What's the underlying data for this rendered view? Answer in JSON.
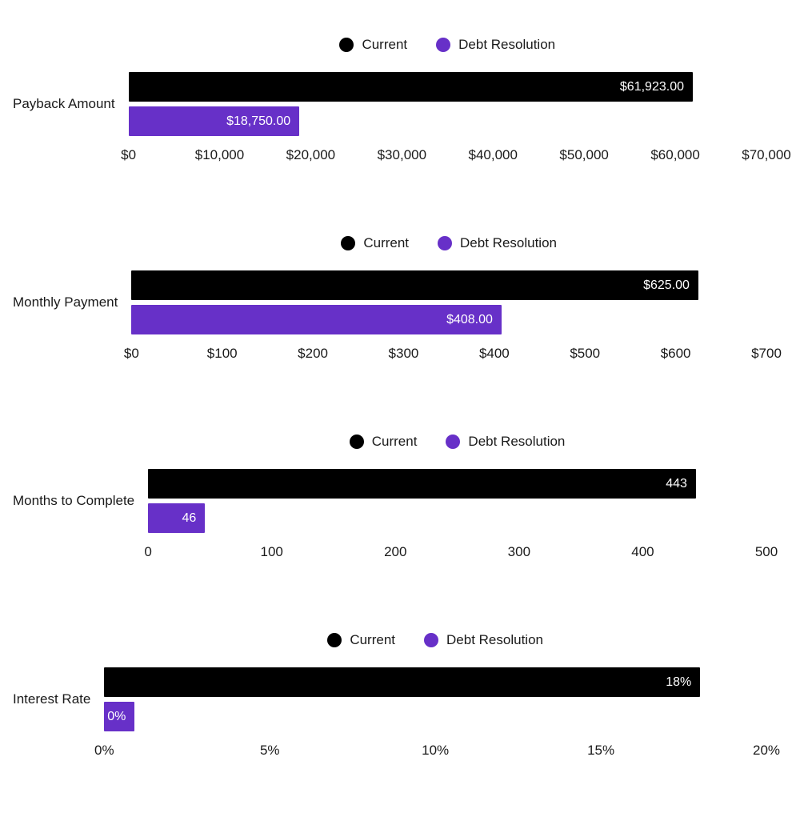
{
  "colors": {
    "current": "#000000",
    "debt": "#6730c8",
    "bar_value_text": "#ffffff",
    "axis_text": "#1a1a1a"
  },
  "legend": {
    "current": "Current",
    "debt": "Debt Resolution"
  },
  "chart_data": [
    {
      "type": "bar",
      "orientation": "horizontal",
      "category": "Payback Amount",
      "legend_position": "top-center",
      "grid": false,
      "xlim": [
        0,
        70000
      ],
      "series": [
        {
          "name": "Current",
          "value": 61923,
          "label": "$61,923.00"
        },
        {
          "name": "Debt Resolution",
          "value": 18750,
          "label": "$18,750.00"
        }
      ],
      "ticks": [
        "$0",
        "$10,000",
        "$20,000",
        "$30,000",
        "$40,000",
        "$50,000",
        "$60,000",
        "$70,000"
      ]
    },
    {
      "type": "bar",
      "orientation": "horizontal",
      "category": "Monthly Payment",
      "legend_position": "top-center",
      "grid": false,
      "xlim": [
        0,
        700
      ],
      "series": [
        {
          "name": "Current",
          "value": 625,
          "label": "$625.00"
        },
        {
          "name": "Debt Resolution",
          "value": 408,
          "label": "$408.00"
        }
      ],
      "ticks": [
        "$0",
        "$100",
        "$200",
        "$300",
        "$400",
        "$500",
        "$600",
        "$700"
      ]
    },
    {
      "type": "bar",
      "orientation": "horizontal",
      "category": "Months to Complete",
      "legend_position": "top-center",
      "grid": false,
      "xlim": [
        0,
        500
      ],
      "series": [
        {
          "name": "Current",
          "value": 443,
          "label": "443"
        },
        {
          "name": "Debt Resolution",
          "value": 46,
          "label": "46"
        }
      ],
      "ticks": [
        "0",
        "100",
        "200",
        "300",
        "400",
        "500"
      ]
    },
    {
      "type": "bar",
      "orientation": "horizontal",
      "category": "Interest Rate",
      "legend_position": "top-center",
      "grid": false,
      "xlim": [
        0,
        20
      ],
      "series": [
        {
          "name": "Current",
          "value": 18,
          "label": "18%"
        },
        {
          "name": "Debt Resolution",
          "value": 0,
          "label": "0%"
        }
      ],
      "ticks": [
        "0%",
        "5%",
        "10%",
        "15%",
        "20%"
      ]
    }
  ]
}
